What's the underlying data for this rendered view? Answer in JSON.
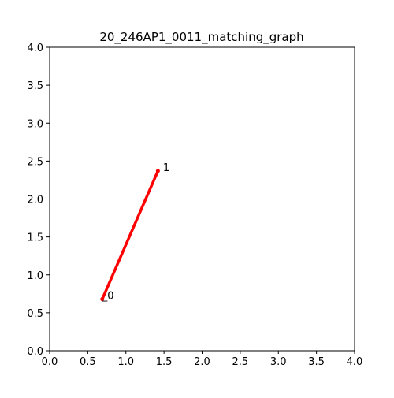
{
  "chart_data": {
    "type": "line",
    "title": "20_246AP1_0011_matching_graph",
    "xlabel": "",
    "ylabel": "",
    "xlim": [
      0.0,
      4.0
    ],
    "ylim": [
      0.0,
      4.0
    ],
    "x_ticks": [
      "0.0",
      "0.5",
      "1.0",
      "1.5",
      "2.0",
      "2.5",
      "3.0",
      "3.5",
      "4.0"
    ],
    "y_ticks": [
      "0.0",
      "0.5",
      "1.0",
      "1.5",
      "2.0",
      "2.5",
      "3.0",
      "3.5",
      "4.0"
    ],
    "grid": false,
    "nodes": [
      {
        "label": "_0",
        "x": 0.69,
        "y": 0.68
      },
      {
        "label": "_1",
        "x": 1.42,
        "y": 2.37
      }
    ],
    "edges": [
      {
        "from": 0,
        "to": 1,
        "color": "#ff0000"
      }
    ]
  }
}
